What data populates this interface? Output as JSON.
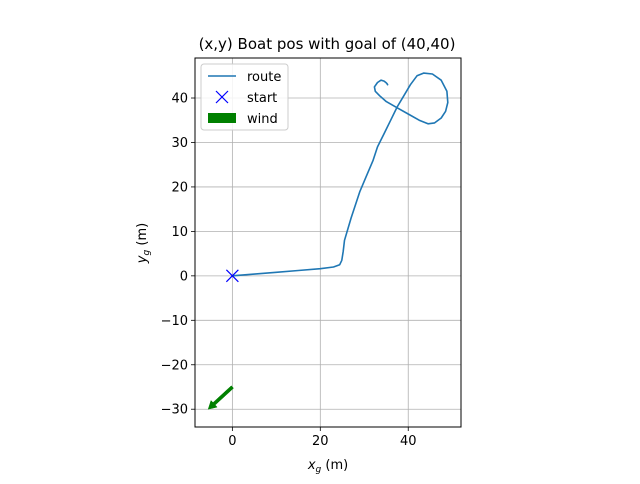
{
  "chart_data": {
    "type": "line",
    "title": "(x,y) Boat pos with goal of (40,40)",
    "xlabel_main": "x",
    "xlabel_sub": "g",
    "xlabel_unit": " (m)",
    "ylabel_main": "y",
    "ylabel_sub": "g",
    "ylabel_unit": " (m)",
    "xlim": [
      -8.5,
      52
    ],
    "ylim": [
      -34,
      49
    ],
    "xticks": [
      0,
      20,
      40
    ],
    "xtick_labels": [
      "0",
      "20",
      "40"
    ],
    "yticks": [
      -30,
      -20,
      -10,
      0,
      10,
      20,
      30,
      40
    ],
    "ytick_labels": [
      "−30",
      "−20",
      "−10",
      "0",
      "10",
      "20",
      "30",
      "40"
    ],
    "grid": true,
    "legend_position": "top-left",
    "series": [
      {
        "name": "route",
        "color": "#1f77b4",
        "x": [
          0,
          5,
          10,
          15,
          20,
          23,
          24.4,
          24.9,
          25.2,
          25.5,
          27,
          29,
          30.5,
          32,
          33,
          34.5,
          36,
          37.5,
          39,
          40.5,
          42,
          43.5,
          45.5,
          47.5,
          48.8,
          49,
          48.5,
          47.5,
          46,
          44.5,
          42.5,
          40,
          37.5,
          35,
          33.5,
          32.5,
          32.3,
          33,
          33.8,
          34.5,
          35,
          35.2,
          35.3
        ],
        "y": [
          0,
          0.4,
          0.8,
          1.2,
          1.6,
          2.0,
          2.5,
          3.5,
          5.5,
          8,
          13,
          19,
          22.5,
          26,
          29,
          32,
          35,
          38,
          40.5,
          43,
          45,
          45.6,
          45.4,
          44,
          41.5,
          39,
          37,
          35.5,
          34.4,
          34.2,
          35,
          36.4,
          37.8,
          39.2,
          40.5,
          41.5,
          42.5,
          43.5,
          44,
          43.8,
          43.4,
          43.2,
          43
        ]
      }
    ],
    "start_marker": {
      "name": "start",
      "x": 0,
      "y": 0,
      "color": "#0000ff",
      "marker": "x"
    },
    "wind_arrow": {
      "name": "wind",
      "color": "#008000",
      "x_start": 0,
      "y_start": -25,
      "dx": -5.5,
      "dy": -5
    }
  }
}
